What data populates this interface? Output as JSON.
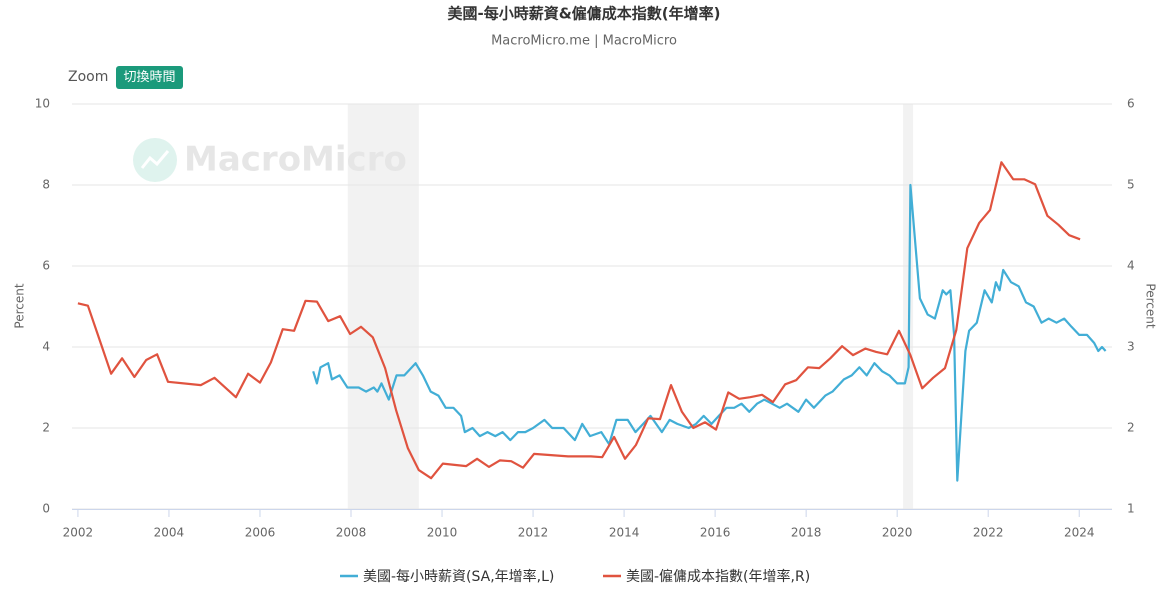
{
  "chart_data": {
    "type": "line",
    "title": "美國-每小時薪資&僱傭成本指數(年增率)",
    "subtitle": "MacroMicro.me | MacroMicro",
    "zoom_label": "Zoom",
    "zoom_button": "切換時間",
    "watermark": "MacroMicro",
    "y_label": "Percent",
    "y2_label": "Percent",
    "xlim": [
      2001.87,
      2024.72
    ],
    "xticks": [
      2002,
      2004,
      2006,
      2008,
      2010,
      2012,
      2014,
      2016,
      2018,
      2020,
      2022,
      2024
    ],
    "ylim": [
      0,
      10
    ],
    "yticks": [
      0,
      2,
      4,
      6,
      8,
      10
    ],
    "y2lim": [
      1,
      6
    ],
    "y2ticks": [
      1,
      2,
      3,
      4,
      5,
      6
    ],
    "grid": true,
    "legend": "bottom",
    "recessions": [
      [
        2007.93,
        2009.49
      ],
      [
        2020.13,
        2020.35
      ]
    ],
    "series": [
      {
        "name": "美國-每小時薪資(SA,年增率,L)",
        "color": "#42aed6",
        "axis": "y",
        "x": [
          2007.17,
          2007.25,
          2007.33,
          2007.5,
          2007.58,
          2007.75,
          2007.92,
          2008.17,
          2008.33,
          2008.5,
          2008.58,
          2008.67,
          2008.83,
          2009.0,
          2009.17,
          2009.42,
          2009.58,
          2009.75,
          2009.92,
          2010.08,
          2010.25,
          2010.42,
          2010.5,
          2010.67,
          2010.83,
          2011.0,
          2011.17,
          2011.33,
          2011.5,
          2011.67,
          2011.83,
          2012.0,
          2012.25,
          2012.42,
          2012.67,
          2012.92,
          2013.08,
          2013.25,
          2013.5,
          2013.67,
          2013.83,
          2014.08,
          2014.25,
          2014.42,
          2014.58,
          2014.83,
          2015.0,
          2015.17,
          2015.42,
          2015.58,
          2015.75,
          2015.92,
          2016.08,
          2016.25,
          2016.42,
          2016.58,
          2016.75,
          2016.92,
          2017.08,
          2017.25,
          2017.42,
          2017.58,
          2017.83,
          2018.0,
          2018.17,
          2018.42,
          2018.58,
          2018.83,
          2019.0,
          2019.17,
          2019.33,
          2019.5,
          2019.67,
          2019.83,
          2020.0,
          2020.17,
          2020.25,
          2020.29,
          2020.5,
          2020.67,
          2020.83,
          2021.0,
          2021.08,
          2021.17,
          2021.25,
          2021.32,
          2021.5,
          2021.58,
          2021.75,
          2021.92,
          2022.08,
          2022.17,
          2022.25,
          2022.33,
          2022.5,
          2022.67,
          2022.83,
          2023.0,
          2023.17,
          2023.33,
          2023.5,
          2023.67,
          2023.83,
          2024.0,
          2024.17,
          2024.33,
          2024.42,
          2024.5,
          2024.58
        ],
        "values": [
          3.4,
          3.1,
          3.5,
          3.6,
          3.2,
          3.3,
          3.0,
          3.0,
          2.9,
          3.0,
          2.9,
          3.1,
          2.7,
          3.3,
          3.3,
          3.6,
          3.3,
          2.9,
          2.8,
          2.5,
          2.5,
          2.3,
          1.9,
          2.0,
          1.8,
          1.9,
          1.8,
          1.9,
          1.7,
          1.9,
          1.9,
          2.0,
          2.2,
          2.0,
          2.0,
          1.7,
          2.1,
          1.8,
          1.9,
          1.6,
          2.2,
          2.2,
          1.9,
          2.1,
          2.3,
          1.9,
          2.2,
          2.1,
          2.0,
          2.1,
          2.3,
          2.1,
          2.3,
          2.5,
          2.5,
          2.6,
          2.4,
          2.6,
          2.7,
          2.6,
          2.5,
          2.6,
          2.4,
          2.7,
          2.5,
          2.8,
          2.9,
          3.2,
          3.3,
          3.5,
          3.3,
          3.6,
          3.4,
          3.3,
          3.1,
          3.1,
          3.5,
          8.0,
          5.2,
          4.8,
          4.7,
          5.4,
          5.3,
          5.4,
          4.3,
          0.7,
          3.9,
          4.4,
          4.6,
          5.4,
          5.1,
          5.6,
          5.4,
          5.9,
          5.6,
          5.5,
          5.1,
          5.0,
          4.6,
          4.7,
          4.6,
          4.7,
          4.5,
          4.3,
          4.3,
          4.1,
          3.9,
          4.0,
          3.9
        ]
      },
      {
        "name": "美國-僱傭成本指數(年增率,R)",
        "color": "#e0533f",
        "axis": "y2",
        "x": [
          2002.0,
          2002.22,
          2002.44,
          2002.73,
          2002.97,
          2003.24,
          2003.5,
          2003.74,
          2003.98,
          2004.7,
          2005.0,
          2005.47,
          2005.74,
          2006.0,
          2006.24,
          2006.5,
          2006.75,
          2007.0,
          2007.25,
          2007.5,
          2007.76,
          2007.98,
          2008.22,
          2008.48,
          2008.75,
          2008.99,
          2009.25,
          2009.49,
          2009.76,
          2010.02,
          2010.53,
          2010.77,
          2011.03,
          2011.27,
          2011.52,
          2011.78,
          2012.02,
          2012.77,
          2013.27,
          2013.52,
          2013.78,
          2014.02,
          2014.26,
          2014.53,
          2014.79,
          2015.03,
          2015.27,
          2015.52,
          2015.78,
          2016.02,
          2016.29,
          2016.53,
          2016.77,
          2017.03,
          2017.27,
          2017.54,
          2017.78,
          2018.04,
          2018.29,
          2018.53,
          2018.79,
          2019.03,
          2019.3,
          2019.54,
          2019.78,
          2020.04,
          2020.29,
          2020.55,
          2020.79,
          2021.05,
          2021.3,
          2021.54,
          2021.8,
          2022.04,
          2022.29,
          2022.55,
          2022.79,
          2023.03,
          2023.3,
          2023.54,
          2023.78,
          2024.02
        ],
        "values": [
          3.54,
          3.51,
          3.15,
          2.67,
          2.86,
          2.63,
          2.84,
          2.91,
          2.57,
          2.53,
          2.62,
          2.38,
          2.67,
          2.56,
          2.81,
          3.22,
          3.2,
          3.57,
          3.56,
          3.32,
          3.38,
          3.16,
          3.25,
          3.12,
          2.74,
          2.22,
          1.75,
          1.48,
          1.38,
          1.56,
          1.53,
          1.62,
          1.52,
          1.6,
          1.59,
          1.51,
          1.68,
          1.65,
          1.65,
          1.64,
          1.89,
          1.62,
          1.79,
          2.12,
          2.11,
          2.53,
          2.2,
          2.0,
          2.07,
          1.98,
          2.44,
          2.36,
          2.38,
          2.41,
          2.32,
          2.54,
          2.59,
          2.75,
          2.74,
          2.86,
          3.01,
          2.9,
          2.98,
          2.94,
          2.91,
          3.2,
          2.9,
          2.49,
          2.62,
          2.74,
          3.21,
          4.22,
          4.53,
          4.69,
          5.28,
          5.07,
          5.07,
          5.01,
          4.62,
          4.51,
          4.38,
          4.33
        ]
      }
    ]
  }
}
